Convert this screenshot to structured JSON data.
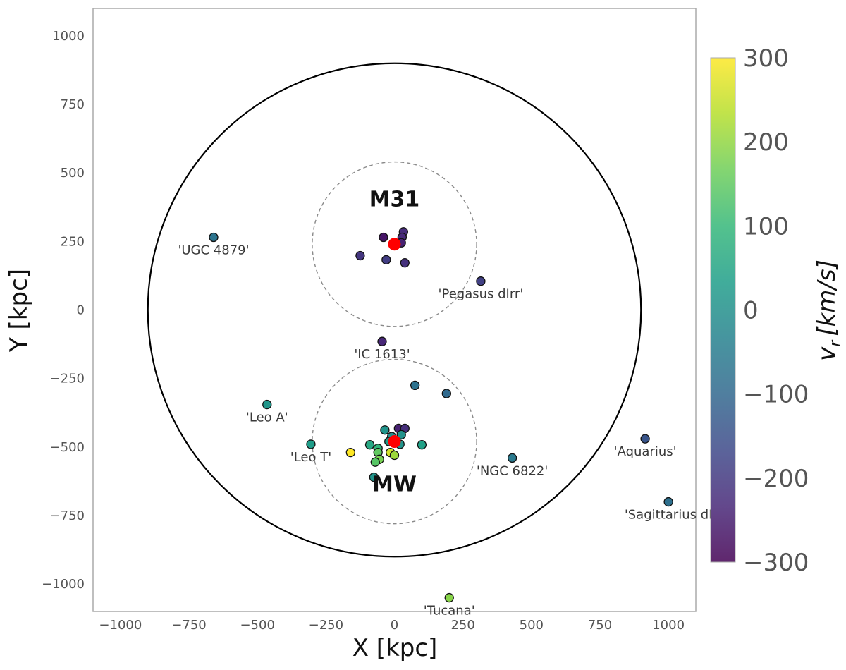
{
  "chart_data": {
    "type": "scatter",
    "xlabel": "X [kpc]",
    "ylabel": "Y [kpc]",
    "xlim": [
      -1100,
      1100
    ],
    "ylim": [
      -1100,
      1100
    ],
    "xticks": [
      -1000,
      -750,
      -500,
      -250,
      0,
      250,
      500,
      750,
      1000
    ],
    "yticks": [
      -1000,
      -750,
      -500,
      -250,
      0,
      250,
      500,
      750,
      1000
    ],
    "grid": false,
    "colorbar": {
      "label_main": "v",
      "label_sub": "r",
      "label_unit": "[km/s]",
      "range": [
        -300,
        300
      ],
      "ticks": [
        -300,
        -200,
        -100,
        0,
        100,
        200,
        300
      ],
      "colormap": [
        "#440154",
        "#482878",
        "#3e4989",
        "#31688e",
        "#26828e",
        "#1f9e89",
        "#35b779",
        "#6ece58",
        "#b5de2b",
        "#fde725"
      ]
    },
    "reference_circles": [
      {
        "name": "outer-boundary",
        "cx": 0,
        "cy": 0,
        "r": 900,
        "style": "solid"
      },
      {
        "name": "m31-zone",
        "cx": 0,
        "cy": 240,
        "r": 300,
        "style": "dashed"
      },
      {
        "name": "mw-zone",
        "cx": 0,
        "cy": -480,
        "r": 300,
        "style": "dashed"
      }
    ],
    "hosts": [
      {
        "name": "M31",
        "label": "M31",
        "x": 0,
        "y": 240,
        "label_x": 0,
        "label_y": 400
      },
      {
        "name": "MW",
        "label": "MW",
        "x": 0,
        "y": -480,
        "label_x": 0,
        "label_y": -640
      }
    ],
    "named_galaxies": [
      {
        "label": "'UGC 4879'",
        "x": -660,
        "y": 265,
        "vr": -70
      },
      {
        "label": "'Pegasus dIrr'",
        "x": 315,
        "y": 105,
        "vr": -185
      },
      {
        "label": "'IC 1613'",
        "x": -45,
        "y": -115,
        "vr": -235
      },
      {
        "label": "'Leo A'",
        "x": -465,
        "y": -345,
        "vr": 15
      },
      {
        "label": "'Leo T'",
        "x": -305,
        "y": -490,
        "vr": 30
      },
      {
        "label": "'NGC 6822'",
        "x": 430,
        "y": -540,
        "vr": -55
      },
      {
        "label": "'Aquarius'",
        "x": 915,
        "y": -470,
        "vr": -140
      },
      {
        "label": "'Sagittarius dI",
        "x": 1000,
        "y": -700,
        "vr": -80
      },
      {
        "label": "'Tucana'",
        "x": 200,
        "y": -1050,
        "vr": 190
      }
    ],
    "satellites": [
      {
        "x": -40,
        "y": 265,
        "vr": -265
      },
      {
        "x": 33,
        "y": 285,
        "vr": -225
      },
      {
        "x": 28,
        "y": 265,
        "vr": -230
      },
      {
        "x": 25,
        "y": 245,
        "vr": -245
      },
      {
        "x": -125,
        "y": 198,
        "vr": -205
      },
      {
        "x": -30,
        "y": 183,
        "vr": -190
      },
      {
        "x": 38,
        "y": 172,
        "vr": -215
      },
      {
        "x": 75,
        "y": -275,
        "vr": -75
      },
      {
        "x": 190,
        "y": -305,
        "vr": -95
      },
      {
        "x": 15,
        "y": -432,
        "vr": -245
      },
      {
        "x": 38,
        "y": -432,
        "vr": -220
      },
      {
        "x": -35,
        "y": -438,
        "vr": 10
      },
      {
        "x": 25,
        "y": -455,
        "vr": 5
      },
      {
        "x": -10,
        "y": -462,
        "vr": -10
      },
      {
        "x": -20,
        "y": -480,
        "vr": 25
      },
      {
        "x": 20,
        "y": -490,
        "vr": 10
      },
      {
        "x": 100,
        "y": -492,
        "vr": 40
      },
      {
        "x": -90,
        "y": -492,
        "vr": 60
      },
      {
        "x": -60,
        "y": -505,
        "vr": 95
      },
      {
        "x": -60,
        "y": -520,
        "vr": 150
      },
      {
        "x": -15,
        "y": -520,
        "vr": 260
      },
      {
        "x": 0,
        "y": -530,
        "vr": 210
      },
      {
        "x": -160,
        "y": -520,
        "vr": 300
      },
      {
        "x": -55,
        "y": -545,
        "vr": 175
      },
      {
        "x": -70,
        "y": -555,
        "vr": 140
      },
      {
        "x": -75,
        "y": -610,
        "vr": 10
      }
    ]
  }
}
